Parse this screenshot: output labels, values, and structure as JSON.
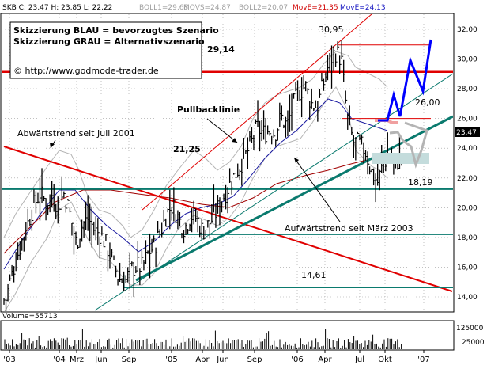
{
  "header": {
    "symbol_quote": "SKB C: 23,47 H: 23,85 L: 22,22",
    "boll1": "BOLL1=29,68",
    "movs": "MOVS=24,87",
    "boll2": "BOLL2=20,07",
    "move1": "MovE=21,35",
    "move2": "MovE=24,13"
  },
  "legend_box": {
    "line1": "Skizzierung BLAU = bevorzugtes Szenario",
    "line2": "Skizzierung GRAU = Alternativszenario",
    "copyright": "© http://www.godmode-trader.de"
  },
  "annotations": {
    "pullback": "Pullbacklinie",
    "downtrend": "Abwärtstrend seit Juli 2001",
    "uptrend": "Aufwärtstrend seit März 2003"
  },
  "levels": {
    "l2914": "29,14",
    "l3095": "30,95",
    "l2600": "26,00",
    "l2125": "21,25",
    "l1819": "18,19",
    "l1461": "14,61"
  },
  "last_price": "23,47",
  "volume_label": "Volume=55713",
  "colors": {
    "price": "#000000",
    "red_line": "#e00000",
    "teal_line": "#0a7a6e",
    "blue_ma": "#1a1aa0",
    "dark_red_ma": "#a00000",
    "bollinger": "#b4b4b4",
    "scenario_blue": "#0000ff",
    "scenario_gray": "#b4b4b4",
    "header_blue": "#1010c0",
    "header_red": "#d00000"
  },
  "chart_data": {
    "type": "candlestick",
    "title": "SKB",
    "y_axis": {
      "ticks": [
        "14,00",
        "16,00",
        "18,00",
        "20,00",
        "22,00",
        "24,00",
        "26,00",
        "28,00",
        "30,00",
        "32,00"
      ],
      "ylim": [
        13.0,
        33.0
      ]
    },
    "x_axis": {
      "ticks": [
        "'03",
        "'04",
        "Mrz",
        "Jun",
        "Sep",
        "'05",
        "Apr",
        "Jun",
        "Sep",
        "'06",
        "Apr",
        "Jul",
        "Okt",
        "'07"
      ]
    },
    "horizontal_levels": [
      30.95,
      29.14,
      26.0,
      21.25,
      18.19,
      14.61
    ],
    "close_series": [
      {
        "x": 0.03,
        "c": 13.8
      },
      {
        "x": 0.1,
        "c": 15.0
      },
      {
        "x": 0.2,
        "c": 16.5
      },
      {
        "x": 0.3,
        "c": 17.8
      },
      {
        "x": 0.4,
        "c": 19.0
      },
      {
        "x": 0.5,
        "c": 20.2
      },
      {
        "x": 0.6,
        "c": 21.0
      },
      {
        "x": 0.7,
        "c": 20.3
      },
      {
        "x": 0.8,
        "c": 20.9
      },
      {
        "x": 0.9,
        "c": 20.1
      },
      {
        "x": 1.0,
        "c": 21.0
      },
      {
        "x": 1.1,
        "c": 19.5
      },
      {
        "x": 1.2,
        "c": 17.6
      },
      {
        "x": 1.3,
        "c": 18.8
      },
      {
        "x": 1.4,
        "c": 19.3
      },
      {
        "x": 1.5,
        "c": 18.5
      },
      {
        "x": 1.6,
        "c": 18.2
      },
      {
        "x": 1.7,
        "c": 17.5
      },
      {
        "x": 1.8,
        "c": 16.4
      },
      {
        "x": 1.9,
        "c": 15.3
      },
      {
        "x": 2.0,
        "c": 14.9
      },
      {
        "x": 2.1,
        "c": 15.8
      },
      {
        "x": 2.2,
        "c": 16.1
      },
      {
        "x": 2.3,
        "c": 16.0
      },
      {
        "x": 2.4,
        "c": 17.0
      },
      {
        "x": 2.5,
        "c": 17.4
      },
      {
        "x": 2.6,
        "c": 18.4
      },
      {
        "x": 2.7,
        "c": 19.6
      },
      {
        "x": 2.8,
        "c": 20.2
      },
      {
        "x": 2.9,
        "c": 19.2
      },
      {
        "x": 3.0,
        "c": 18.6
      },
      {
        "x": 3.1,
        "c": 19.5
      },
      {
        "x": 3.2,
        "c": 19.3
      },
      {
        "x": 3.3,
        "c": 18.4
      },
      {
        "x": 3.4,
        "c": 18.9
      },
      {
        "x": 3.5,
        "c": 19.5
      },
      {
        "x": 3.6,
        "c": 20.4
      },
      {
        "x": 3.7,
        "c": 21.2
      },
      {
        "x": 3.8,
        "c": 22.0
      },
      {
        "x": 3.9,
        "c": 22.7
      },
      {
        "x": 4.0,
        "c": 23.4
      },
      {
        "x": 4.1,
        "c": 24.3
      },
      {
        "x": 4.2,
        "c": 25.4
      },
      {
        "x": 4.3,
        "c": 25.0
      },
      {
        "x": 4.4,
        "c": 25.2
      },
      {
        "x": 4.5,
        "c": 25.0
      },
      {
        "x": 4.6,
        "c": 26.1
      },
      {
        "x": 4.7,
        "c": 25.5
      },
      {
        "x": 4.8,
        "c": 26.9
      },
      {
        "x": 4.9,
        "c": 27.8
      },
      {
        "x": 5.0,
        "c": 28.2
      },
      {
        "x": 5.1,
        "c": 27.0
      },
      {
        "x": 5.2,
        "c": 26.8
      },
      {
        "x": 5.3,
        "c": 28.3
      },
      {
        "x": 5.4,
        "c": 29.8
      },
      {
        "x": 5.5,
        "c": 30.5
      },
      {
        "x": 5.6,
        "c": 30.0
      },
      {
        "x": 5.7,
        "c": 26.0
      },
      {
        "x": 5.8,
        "c": 24.4
      },
      {
        "x": 5.9,
        "c": 24.3
      },
      {
        "x": 6.0,
        "c": 23.8
      },
      {
        "x": 6.1,
        "c": 22.4
      },
      {
        "x": 6.2,
        "c": 21.7
      },
      {
        "x": 6.3,
        "c": 23.0
      },
      {
        "x": 6.4,
        "c": 23.5
      },
      {
        "x": 6.5,
        "c": 23.0
      },
      {
        "x": 6.6,
        "c": 23.47
      }
    ],
    "series": [
      {
        "name": "MovE=21,35",
        "color": "#a00000"
      },
      {
        "name": "MovE=24,13",
        "color": "#1a1aa0"
      },
      {
        "name": "BOLL1=29,68",
        "color": "#b4b4b4"
      },
      {
        "name": "BOLL2=20,07",
        "color": "#b4b4b4"
      }
    ],
    "volume": {
      "label": "Volume=55713",
      "ticks": [
        "125000",
        "25000"
      ]
    },
    "scenario_blue": [
      [
        0.0,
        24.2
      ],
      [
        0.25,
        24.2
      ],
      [
        0.45,
        26.0
      ],
      [
        0.6,
        24.3
      ],
      [
        1.2,
        29.5
      ],
      [
        1.85,
        26.3
      ],
      [
        2.4,
        31.0
      ]
    ],
    "scenario_gray": [
      [
        0.0,
        23.9
      ],
      [
        0.5,
        21.0
      ],
      [
        1.4,
        24.2
      ]
    ]
  }
}
